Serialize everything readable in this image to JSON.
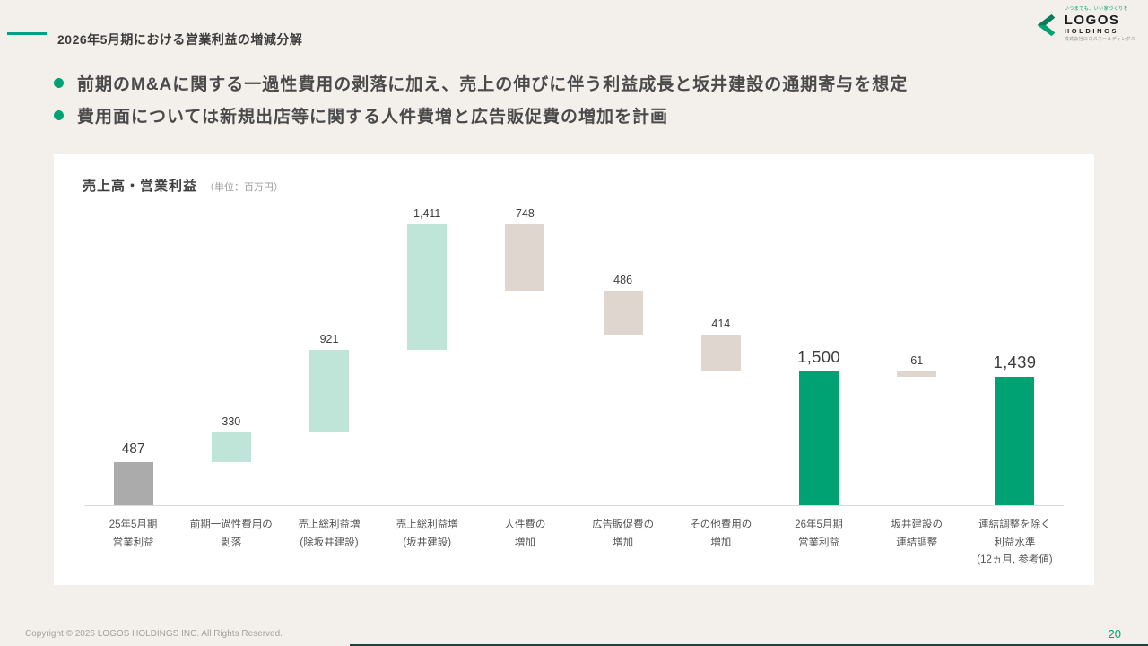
{
  "colors": {
    "background": "#F3F0EB",
    "accent_teal": "#00A283",
    "brand_green": "#00A273",
    "card": "#FFFFFF"
  },
  "header": {
    "title": "2026年5月期における営業利益の増減分解"
  },
  "logo": {
    "tagline": "いつまでも、いい家づくりを",
    "name": "LOGOS",
    "sub": "HOLDINGS",
    "company": "株式会社ロゴスホールディングス"
  },
  "bullets": [
    "前期のM&Aに関する一過性費用の剥落に加え、売上の伸びに伴う利益成長と坂井建設の通期寄与を想定",
    "費用面については新規出店等に関する人件費増と広告販促費の増加を計画"
  ],
  "chart": {
    "title": "売上高・営業利益",
    "unit_note": "（単位：百万円）"
  },
  "chart_data": {
    "type": "bar",
    "subtype": "waterfall",
    "title": "売上高・営業利益（単位：百万円）",
    "unit": "百万円",
    "ylim": [
      0,
      3350
    ],
    "grid": false,
    "legend": "none",
    "palette": {
      "start": "#ABABAB",
      "increase": "#BEE5D7",
      "decrease": "#E0D6D0",
      "total": "#00A273"
    },
    "categories": [
      "25年5月期 営業利益",
      "前期一過性費用の剥落",
      "売上総利益増 (除坂井建設)",
      "売上総利益増 (坂井建設)",
      "人件費の増加",
      "広告販促費の増加",
      "その他費用の増加",
      "26年5月期 営業利益",
      "坂井建設の連結調整",
      "連結調整を除く利益水準 (12ヵ月, 参考値)"
    ],
    "bars": [
      {
        "labels": [
          "25年5月期",
          "営業利益"
        ],
        "value": 487,
        "display": "487",
        "start": 0,
        "end": 487,
        "color": "start",
        "size": "md",
        "kind": "total"
      },
      {
        "labels": [
          "前期一過性費用の",
          "剥落"
        ],
        "value": 330,
        "display": "330",
        "start": 487,
        "end": 817,
        "color": "increase",
        "size": "sm",
        "kind": "increase"
      },
      {
        "labels": [
          "売上総利益増",
          "(除坂井建設)"
        ],
        "value": 921,
        "display": "921",
        "start": 817,
        "end": 1738,
        "color": "increase",
        "size": "sm",
        "kind": "increase"
      },
      {
        "labels": [
          "売上総利益増",
          "(坂井建設)"
        ],
        "value": 1411,
        "display": "1,411",
        "start": 1738,
        "end": 3149,
        "color": "increase",
        "size": "sm",
        "kind": "increase"
      },
      {
        "labels": [
          "人件費の",
          "増加"
        ],
        "value": -748,
        "display": "748",
        "start": 3149,
        "end": 2401,
        "color": "decrease",
        "size": "sm",
        "kind": "decrease"
      },
      {
        "labels": [
          "広告販促費の",
          "増加"
        ],
        "value": -486,
        "display": "486",
        "start": 2401,
        "end": 1915,
        "color": "decrease",
        "size": "sm",
        "kind": "decrease"
      },
      {
        "labels": [
          "その他費用の",
          "増加"
        ],
        "value": -414,
        "display": "414",
        "start": 1915,
        "end": 1501,
        "color": "decrease",
        "size": "sm",
        "kind": "decrease"
      },
      {
        "labels": [
          "26年5月期",
          "営業利益"
        ],
        "value": 1500,
        "display": "1,500",
        "start": 0,
        "end": 1500,
        "color": "total",
        "size": "lg",
        "kind": "total"
      },
      {
        "labels": [
          "坂井建設の",
          "連結調整"
        ],
        "value": -61,
        "display": "61",
        "start": 1500,
        "end": 1439,
        "color": "decrease",
        "size": "sm",
        "kind": "decrease"
      },
      {
        "labels": [
          "連結調整を除く",
          "利益水準",
          "(12ヵ月, 参考値)"
        ],
        "value": 1439,
        "display": "1,439",
        "start": 0,
        "end": 1439,
        "color": "total",
        "size": "lg",
        "kind": "total"
      }
    ]
  },
  "footer": {
    "copyright": "Copyright © 2026 LOGOS HOLDINGS INC. All Rights Reserved.",
    "page_number": "20"
  }
}
